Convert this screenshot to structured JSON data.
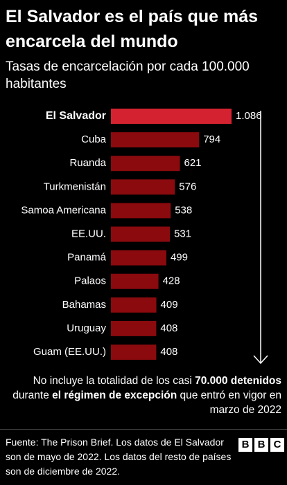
{
  "chart_data": {
    "type": "bar",
    "orientation": "horizontal",
    "title": "El Salvador es el país que más encarcela del mundo",
    "subtitle": "Tasas de encarcelación por cada 100.000 habitantes",
    "categories": [
      "El Salvador",
      "Cuba",
      "Ruanda",
      "Turkmenistán",
      "Samoa Americana",
      "EE.UU.",
      "Panamá",
      "Palaos",
      "Bahamas",
      "Uruguay",
      "Guam (EE.UU.)"
    ],
    "values": [
      1086,
      794,
      621,
      576,
      538,
      531,
      499,
      428,
      409,
      408,
      408
    ],
    "value_labels": [
      "1.086",
      "794",
      "621",
      "576",
      "538",
      "531",
      "499",
      "428",
      "409",
      "408",
      "408"
    ],
    "color": "#8a0a0e",
    "highlight_color": "#d42230",
    "highlight": 0,
    "note": [
      {
        "text": "No incluye la totalidad de los casi ",
        "bold": false
      },
      {
        "text": "70.000 detenidos",
        "bold": true
      },
      {
        "text": " durante ",
        "bold": false
      },
      {
        "text": "el régimen de excepción",
        "bold": true
      },
      {
        "text": " que entró en vigor en marzo de 2022",
        "bold": false
      }
    ],
    "source": "Fuente: The Prison Brief. Los datos de El Salvador son de mayo de 2022. Los datos del resto de países son de diciembre de 2022.",
    "logo": [
      "B",
      "B",
      "C"
    ]
  }
}
